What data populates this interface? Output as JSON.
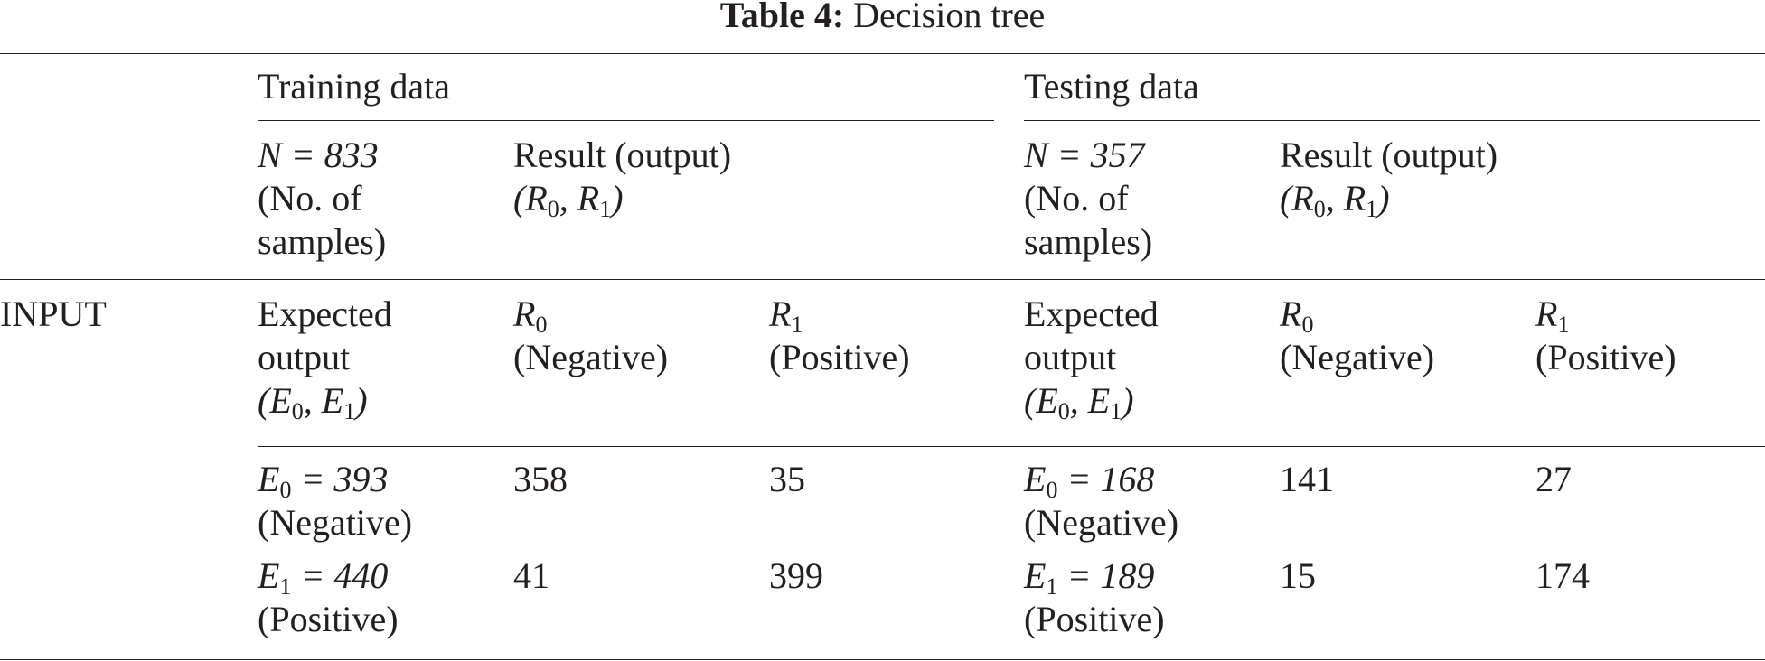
{
  "caption": {
    "label": "Table 4:",
    "title": "Decision tree"
  },
  "groups": {
    "training": {
      "title": "Training data",
      "n_label": "N = 833",
      "n_sub": [
        "(No. of",
        "samples)"
      ],
      "result_label": [
        "Result (output)",
        "(R0, R1)"
      ],
      "expected_label": [
        "Expected",
        "output",
        "(E0, E1)"
      ],
      "r0_header": [
        "R0",
        "(Negative)"
      ],
      "r1_header": [
        "R1",
        "(Positive)"
      ],
      "rows": [
        {
          "e_label": "E0 = 393",
          "e_desc": "(Negative)",
          "r0": "358",
          "r1": "35"
        },
        {
          "e_label": "E1 = 440",
          "e_desc": "(Positive)",
          "r0": "41",
          "r1": "399"
        }
      ]
    },
    "testing": {
      "title": "Testing data",
      "n_label": "N = 357",
      "n_sub": [
        "(No. of",
        "samples)"
      ],
      "result_label": [
        "Result (output)",
        "(R0, R1)"
      ],
      "expected_label": [
        "Expected",
        "output",
        "(E0, E1)"
      ],
      "r0_header": [
        "R0",
        "(Negative)"
      ],
      "r1_header": [
        "R1",
        "(Positive)"
      ],
      "rows": [
        {
          "e_label": "E0 = 168",
          "e_desc": "(Negative)",
          "r0": "141",
          "r1": "27"
        },
        {
          "e_label": "E1 = 189",
          "e_desc": "(Positive)",
          "r0": "15",
          "r1": "174"
        }
      ]
    }
  },
  "row_label": "INPUT"
}
